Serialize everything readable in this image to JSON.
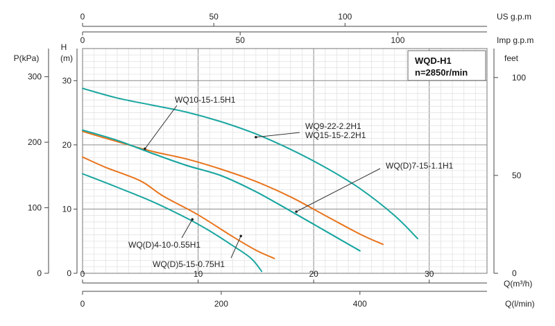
{
  "chart_data": {
    "type": "line",
    "title": "WQD-H1",
    "subtitle": "n=2850r/min",
    "x_axes": {
      "q_m3h": {
        "label": "Q(m³/h)",
        "range": [
          0,
          35
        ],
        "ticks": [
          0,
          10,
          20,
          30
        ]
      },
      "q_lmin": {
        "label": "Q(l/min)",
        "range": [
          0,
          583.3
        ],
        "ticks": [
          0,
          200,
          400
        ]
      },
      "us_gpm": {
        "label": "US g.p.m",
        "range": [
          0,
          154.1
        ],
        "ticks": [
          0,
          50,
          100
        ]
      },
      "imp_gpm": {
        "label": "Imp g.p.m",
        "range": [
          0,
          128.3
        ],
        "ticks": [
          0,
          50,
          100
        ]
      }
    },
    "y_axes": {
      "h_m": {
        "label_line1": "H",
        "label_line2": "(m)",
        "range": [
          0,
          35
        ],
        "ticks": [
          0,
          10,
          20,
          30
        ]
      },
      "p_kpa": {
        "label": "P(kPa)",
        "range": [
          0,
          343
        ],
        "ticks": [
          0,
          100,
          200,
          300
        ]
      },
      "feet": {
        "label": "feet",
        "range": [
          0,
          114.8
        ],
        "ticks": [
          0,
          50,
          100
        ]
      }
    },
    "grid": true,
    "series": [
      {
        "name": "WQ9-22-2.2H1",
        "color": "#1aa6a0",
        "x": [
          0,
          3,
          6,
          9,
          12,
          15,
          18,
          21,
          24,
          27,
          29
        ],
        "y": [
          28.8,
          27.3,
          26.2,
          25.1,
          23.6,
          21.7,
          19.3,
          16.5,
          13.2,
          9.0,
          5.4
        ]
      },
      {
        "name": "WQ15-15-2.2H1",
        "color": "#e8741c",
        "x": [
          0,
          3,
          6,
          9,
          12,
          15,
          18,
          21,
          24,
          26
        ],
        "y": [
          22.1,
          20.5,
          19.0,
          17.8,
          16.2,
          14.3,
          11.9,
          9.0,
          6.1,
          4.5
        ]
      },
      {
        "name": "WQ10-15-1.5H1",
        "color": "#1aa6a0",
        "x": [
          0,
          3,
          6,
          9,
          12,
          15,
          18,
          21,
          24
        ],
        "y": [
          22.3,
          20.7,
          18.7,
          16.8,
          15.2,
          12.7,
          9.7,
          6.6,
          3.5
        ]
      },
      {
        "name": "WQ(D)7-15-1.1H1",
        "color": "#1aa6a0",
        "x": [
          0,
          3,
          6,
          9,
          12,
          15,
          18,
          21,
          24
        ],
        "y": [
          22.3,
          20.7,
          18.7,
          16.8,
          15.2,
          12.7,
          9.7,
          6.6,
          3.5
        ]
      },
      {
        "name": "WQ(D)5-15-0.75H1",
        "color": "#e8741c",
        "x": [
          0,
          2,
          5,
          7,
          10,
          13,
          15,
          16.6
        ],
        "y": [
          18.1,
          16.5,
          14.4,
          12.0,
          9.1,
          5.7,
          3.6,
          2.3
        ]
      },
      {
        "name": "WQ(D)4-10-0.55H1",
        "color": "#1aa6a0",
        "x": [
          0,
          3,
          6,
          9,
          11,
          13,
          14.6,
          15.5
        ],
        "y": [
          15.5,
          13.4,
          11.2,
          8.6,
          6.6,
          4.3,
          2.3,
          0.3
        ]
      }
    ],
    "annotations": [
      {
        "text": "WQ10-15-1.5H1",
        "point": [
          5.4,
          19.4
        ]
      },
      {
        "text_lines": [
          "WQ9-22-2.2H1",
          "WQ15-15-2.2H1"
        ],
        "point": [
          15.0,
          21.2
        ]
      },
      {
        "text": "WQ(D)7-15-1.1H1",
        "point": [
          18.5,
          9.6
        ]
      },
      {
        "text": "WQ(D)4-10-0.55H1",
        "point": [
          9.5,
          8.4
        ]
      },
      {
        "text": "WQ(D)5-15-0.75H1",
        "point": [
          13.7,
          5.8
        ]
      }
    ]
  }
}
